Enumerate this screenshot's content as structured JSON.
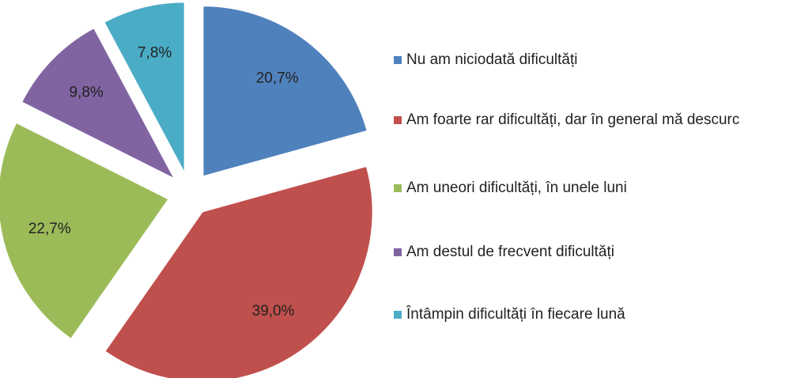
{
  "chart_data": {
    "type": "pie",
    "categories": [
      "Nu am niciodată dificultăți",
      "Am foarte rar dificultăți, dar în general mă descurc",
      "Am uneori dificultăți, în unele luni",
      "Am destul de frecvent dificultăți",
      " Întâmpin dificultăți în fiecare lună"
    ],
    "values": [
      20.7,
      39.0,
      22.7,
      9.8,
      7.8
    ],
    "value_labels": [
      "20,7%",
      "39,0%",
      "22,7%",
      "9,8%",
      "7,8%"
    ],
    "colors": [
      "#4f81bd",
      "#c0504d",
      "#9bbb59",
      "#8064a2",
      "#4bacc6"
    ],
    "legend": "right"
  }
}
